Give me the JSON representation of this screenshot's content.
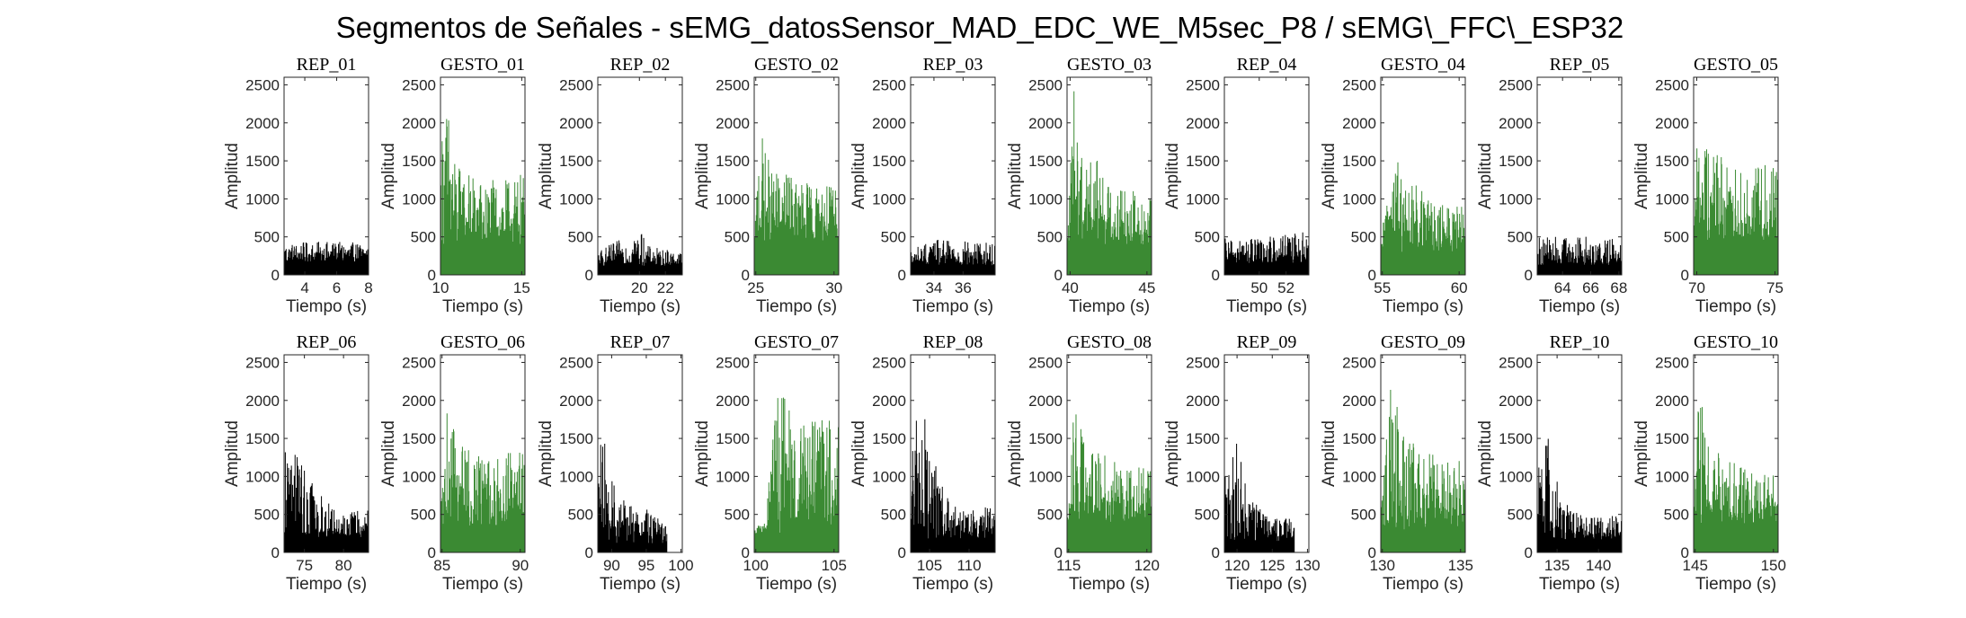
{
  "figure": {
    "title": "Segmentos de Señales - sEMG_datosSensor_MAD_EDC_WE_M5sec_P8 / sEMG\\_FFC\\_ESP32",
    "xlabel": "Tiempo (s)",
    "ylabel": "Amplitud"
  },
  "colors": {
    "rep": "#000000",
    "gesto": "#3b8a33",
    "axis": "#262626"
  },
  "chart_data": [
    {
      "type": "bar",
      "title": "REP_01",
      "kind": "rep",
      "xlim": [
        2.7,
        8
      ],
      "xticks": [
        4,
        6,
        8
      ],
      "ylim": [
        0,
        2600
      ],
      "yticks": [
        0,
        500,
        1000,
        1500,
        2000,
        2500
      ],
      "envelope": [
        {
          "t": 0,
          "y": 420
        },
        {
          "t": 0.5,
          "y": 440
        },
        {
          "t": 1,
          "y": 420
        }
      ],
      "floor": 170
    },
    {
      "type": "bar",
      "title": "GESTO_01",
      "kind": "gesto",
      "xlim": [
        10,
        15.2
      ],
      "xticks": [
        10,
        15
      ],
      "ylim": [
        0,
        2600
      ],
      "yticks": [
        0,
        500,
        1000,
        1500,
        2000,
        2500
      ],
      "envelope": [
        {
          "t": 0,
          "y": 1700
        },
        {
          "t": 0.05,
          "y": 2480
        },
        {
          "t": 0.2,
          "y": 1450
        },
        {
          "t": 0.5,
          "y": 1250
        },
        {
          "t": 0.8,
          "y": 1250
        },
        {
          "t": 1,
          "y": 1350
        }
      ],
      "floor": 400
    },
    {
      "type": "bar",
      "title": "REP_02",
      "kind": "rep",
      "xlim": [
        16.8,
        23.3
      ],
      "xticks": [
        20,
        22
      ],
      "ylim": [
        0,
        2600
      ],
      "yticks": [
        0,
        500,
        1000,
        1500,
        2000,
        2500
      ],
      "envelope": [
        {
          "t": 0,
          "y": 320
        },
        {
          "t": 0.5,
          "y": 600
        },
        {
          "t": 0.6,
          "y": 380
        },
        {
          "t": 1,
          "y": 300
        }
      ],
      "floor": 120
    },
    {
      "type": "bar",
      "title": "GESTO_02",
      "kind": "gesto",
      "xlim": [
        24.9,
        30.3
      ],
      "xticks": [
        25,
        30
      ],
      "ylim": [
        0,
        2600
      ],
      "yticks": [
        0,
        500,
        1000,
        1500,
        2000,
        2500
      ],
      "envelope": [
        {
          "t": 0,
          "y": 400
        },
        {
          "t": 0.05,
          "y": 2000
        },
        {
          "t": 0.2,
          "y": 1400
        },
        {
          "t": 0.6,
          "y": 1250
        },
        {
          "t": 1,
          "y": 1150
        }
      ],
      "floor": 450
    },
    {
      "type": "bar",
      "title": "REP_03",
      "kind": "rep",
      "xlim": [
        32.4,
        38.2
      ],
      "xticks": [
        34,
        36
      ],
      "ylim": [
        0,
        2600
      ],
      "yticks": [
        0,
        500,
        1000,
        1500,
        2000,
        2500
      ],
      "envelope": [
        {
          "t": 0,
          "y": 350
        },
        {
          "t": 0.3,
          "y": 470
        },
        {
          "t": 1,
          "y": 430
        }
      ],
      "floor": 120
    },
    {
      "type": "bar",
      "title": "GESTO_03",
      "kind": "gesto",
      "xlim": [
        39.8,
        45.3
      ],
      "xticks": [
        40,
        45
      ],
      "ylim": [
        0,
        2600
      ],
      "yticks": [
        0,
        500,
        1000,
        1500,
        2000,
        2500
      ],
      "envelope": [
        {
          "t": 0,
          "y": 500
        },
        {
          "t": 0.08,
          "y": 2550
        },
        {
          "t": 0.2,
          "y": 1800
        },
        {
          "t": 0.5,
          "y": 1250
        },
        {
          "t": 1,
          "y": 1100
        }
      ],
      "floor": 400
    },
    {
      "type": "bar",
      "title": "REP_04",
      "kind": "rep",
      "xlim": [
        47.4,
        53.7
      ],
      "xticks": [
        50,
        52
      ],
      "ylim": [
        0,
        2600
      ],
      "yticks": [
        0,
        500,
        1000,
        1500,
        2000,
        2500
      ],
      "envelope": [
        {
          "t": 0,
          "y": 480
        },
        {
          "t": 0.5,
          "y": 500
        },
        {
          "t": 1,
          "y": 580
        }
      ],
      "floor": 150
    },
    {
      "type": "bar",
      "title": "GESTO_04",
      "kind": "gesto",
      "xlim": [
        54.9,
        60.4
      ],
      "xticks": [
        55,
        60
      ],
      "ylim": [
        0,
        2600
      ],
      "yticks": [
        0,
        500,
        1000,
        1500,
        2000,
        2500
      ],
      "envelope": [
        {
          "t": 0,
          "y": 400
        },
        {
          "t": 0.12,
          "y": 1850
        },
        {
          "t": 0.3,
          "y": 1300
        },
        {
          "t": 0.6,
          "y": 1000
        },
        {
          "t": 1,
          "y": 900
        }
      ],
      "floor": 300
    },
    {
      "type": "bar",
      "title": "REP_05",
      "kind": "rep",
      "xlim": [
        62.2,
        68.2
      ],
      "xticks": [
        64,
        66,
        68
      ],
      "ylim": [
        0,
        2600
      ],
      "yticks": [
        0,
        500,
        1000,
        1500,
        2000,
        2500
      ],
      "envelope": [
        {
          "t": 0,
          "y": 500
        },
        {
          "t": 0.5,
          "y": 520
        },
        {
          "t": 1,
          "y": 470
        }
      ],
      "floor": 130
    },
    {
      "type": "bar",
      "title": "GESTO_05",
      "kind": "gesto",
      "xlim": [
        69.8,
        75.2
      ],
      "xticks": [
        70,
        75
      ],
      "ylim": [
        0,
        2600
      ],
      "yticks": [
        0,
        500,
        1000,
        1500,
        2000,
        2500
      ],
      "envelope": [
        {
          "t": 0,
          "y": 1500
        },
        {
          "t": 0.1,
          "y": 2150
        },
        {
          "t": 0.3,
          "y": 1600
        },
        {
          "t": 0.6,
          "y": 1350
        },
        {
          "t": 1,
          "y": 1600
        }
      ],
      "floor": 450
    },
    {
      "type": "bar",
      "title": "REP_06",
      "kind": "rep",
      "xlim": [
        72.4,
        83.2
      ],
      "xticks": [
        75,
        80
      ],
      "ylim": [
        0,
        2600
      ],
      "yticks": [
        0,
        500,
        1000,
        1500,
        2000,
        2500
      ],
      "envelope": [
        {
          "t": 0,
          "y": 1500
        },
        {
          "t": 0.1,
          "y": 1580
        },
        {
          "t": 0.35,
          "y": 900
        },
        {
          "t": 0.6,
          "y": 550
        },
        {
          "t": 1,
          "y": 550
        }
      ],
      "floor": 200
    },
    {
      "type": "bar",
      "title": "GESTO_06",
      "kind": "gesto",
      "xlim": [
        84.9,
        90.3
      ],
      "xticks": [
        85,
        90
      ],
      "ylim": [
        0,
        2600
      ],
      "yticks": [
        0,
        500,
        1000,
        1500,
        2000,
        2500
      ],
      "envelope": [
        {
          "t": 0,
          "y": 600
        },
        {
          "t": 0.08,
          "y": 1950
        },
        {
          "t": 0.25,
          "y": 1400
        },
        {
          "t": 0.6,
          "y": 1200
        },
        {
          "t": 1,
          "y": 1500
        }
      ],
      "floor": 350
    },
    {
      "type": "bar",
      "title": "REP_07",
      "kind": "rep",
      "xlim": [
        88,
        100.2
      ],
      "xticks": [
        90,
        95,
        100
      ],
      "ylim": [
        0,
        2600
      ],
      "yticks": [
        0,
        500,
        1000,
        1500,
        2000,
        2500
      ],
      "envelope": [
        {
          "t": 0,
          "y": 1300
        },
        {
          "t": 0.05,
          "y": 1620
        },
        {
          "t": 0.25,
          "y": 750
        },
        {
          "t": 0.65,
          "y": 550
        },
        {
          "t": 0.8,
          "y": 350
        }
      ],
      "floor": 120,
      "end_fraction": 0.82
    },
    {
      "type": "bar",
      "title": "GESTO_07",
      "kind": "gesto",
      "xlim": [
        99.9,
        105.3
      ],
      "xticks": [
        100,
        105
      ],
      "ylim": [
        0,
        2600
      ],
      "yticks": [
        0,
        500,
        1000,
        1500,
        2000,
        2500
      ],
      "envelope": [
        {
          "t": 0,
          "y": 350
        },
        {
          "t": 0.12,
          "y": 400
        },
        {
          "t": 0.2,
          "y": 1500
        },
        {
          "t": 0.3,
          "y": 2200
        },
        {
          "t": 0.6,
          "y": 1700
        },
        {
          "t": 1,
          "y": 1800
        }
      ],
      "floor": 250
    },
    {
      "type": "bar",
      "title": "REP_08",
      "kind": "rep",
      "xlim": [
        102.6,
        113.3
      ],
      "xticks": [
        105,
        110
      ],
      "ylim": [
        0,
        2600
      ],
      "yticks": [
        0,
        500,
        1000,
        1500,
        2000,
        2500
      ],
      "envelope": [
        {
          "t": 0,
          "y": 1650
        },
        {
          "t": 0.15,
          "y": 1870
        },
        {
          "t": 0.35,
          "y": 900
        },
        {
          "t": 0.6,
          "y": 550
        },
        {
          "t": 1,
          "y": 620
        }
      ],
      "floor": 180
    },
    {
      "type": "bar",
      "title": "GESTO_08",
      "kind": "gesto",
      "xlim": [
        114.9,
        120.3
      ],
      "xticks": [
        115,
        120
      ],
      "ylim": [
        0,
        2600
      ],
      "yticks": [
        0,
        500,
        1000,
        1500,
        2000,
        2500
      ],
      "envelope": [
        {
          "t": 0,
          "y": 1000
        },
        {
          "t": 0.08,
          "y": 1900
        },
        {
          "t": 0.3,
          "y": 1350
        },
        {
          "t": 0.6,
          "y": 1200
        },
        {
          "t": 1,
          "y": 1100
        }
      ],
      "floor": 400
    },
    {
      "type": "bar",
      "title": "REP_09",
      "kind": "rep",
      "xlim": [
        118.2,
        130.2
      ],
      "xticks": [
        120,
        125,
        130
      ],
      "ylim": [
        0,
        2600
      ],
      "yticks": [
        0,
        500,
        1000,
        1500,
        2000,
        2500
      ],
      "envelope": [
        {
          "t": 0,
          "y": 1000
        },
        {
          "t": 0.12,
          "y": 1620
        },
        {
          "t": 0.3,
          "y": 700
        },
        {
          "t": 0.6,
          "y": 450
        },
        {
          "t": 0.8,
          "y": 450
        }
      ],
      "floor": 150,
      "end_fraction": 0.83
    },
    {
      "type": "bar",
      "title": "GESTO_09",
      "kind": "gesto",
      "xlim": [
        129.9,
        135.3
      ],
      "xticks": [
        130,
        135
      ],
      "ylim": [
        0,
        2600
      ],
      "yticks": [
        0,
        500,
        1000,
        1500,
        2000,
        2500
      ],
      "envelope": [
        {
          "t": 0,
          "y": 700
        },
        {
          "t": 0.12,
          "y": 2300
        },
        {
          "t": 0.3,
          "y": 1500
        },
        {
          "t": 0.6,
          "y": 1300
        },
        {
          "t": 1,
          "y": 1200
        }
      ],
      "floor": 300
    },
    {
      "type": "bar",
      "title": "REP_10",
      "kind": "rep",
      "xlim": [
        132.6,
        142.8
      ],
      "xticks": [
        135,
        140
      ],
      "ylim": [
        0,
        2600
      ],
      "yticks": [
        0,
        500,
        1000,
        1500,
        2000,
        2500
      ],
      "envelope": [
        {
          "t": 0,
          "y": 1100
        },
        {
          "t": 0.12,
          "y": 1580
        },
        {
          "t": 0.3,
          "y": 700
        },
        {
          "t": 0.6,
          "y": 450
        },
        {
          "t": 1,
          "y": 500
        }
      ],
      "floor": 150
    },
    {
      "type": "bar",
      "title": "GESTO_10",
      "kind": "gesto",
      "xlim": [
        144.9,
        150.3
      ],
      "xticks": [
        145,
        150
      ],
      "ylim": [
        0,
        2600
      ],
      "yticks": [
        0,
        500,
        1000,
        1500,
        2000,
        2500
      ],
      "envelope": [
        {
          "t": 0,
          "y": 1500
        },
        {
          "t": 0.05,
          "y": 2150
        },
        {
          "t": 0.2,
          "y": 1400
        },
        {
          "t": 0.6,
          "y": 1100
        },
        {
          "t": 1,
          "y": 1000
        }
      ],
      "floor": 350
    }
  ]
}
